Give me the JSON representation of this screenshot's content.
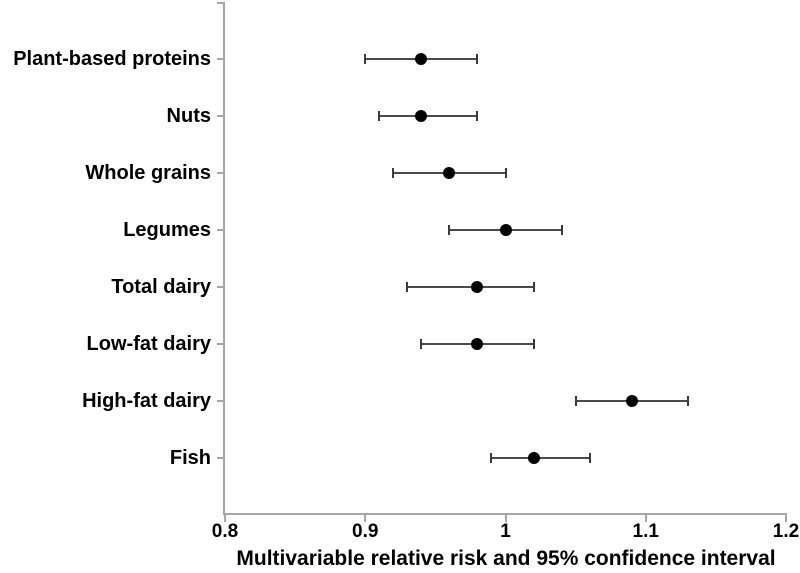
{
  "chart_data": {
    "type": "scatter",
    "subtype": "forest-plot-horizontal-error-bars",
    "title": "",
    "xlabel": "Multivariable relative risk and 95% confidence interval",
    "ylabel": "",
    "xlim": [
      0.8,
      1.2
    ],
    "xticks": [
      {
        "value": 0.8,
        "label": "0.8"
      },
      {
        "value": 0.9,
        "label": "0.9"
      },
      {
        "value": 1.0,
        "label": "1"
      },
      {
        "value": 1.1,
        "label": "1.1"
      },
      {
        "value": 1.2,
        "label": "1.2"
      }
    ],
    "grid": false,
    "legend_position": "none",
    "categories": [
      "Plant-based proteins",
      "Nuts",
      "Whole grains",
      "Legumes",
      "Total dairy",
      "Low-fat dairy",
      "High-fat dairy",
      "Fish"
    ],
    "series": [
      {
        "name": "Multivariable relative risk with 95% CI",
        "marker": "filled-circle",
        "points": [
          {
            "category": "Plant-based proteins",
            "rr": 0.94,
            "ci_low": 0.9,
            "ci_high": 0.98
          },
          {
            "category": "Nuts",
            "rr": 0.94,
            "ci_low": 0.91,
            "ci_high": 0.98
          },
          {
            "category": "Whole grains",
            "rr": 0.96,
            "ci_low": 0.92,
            "ci_high": 1.0
          },
          {
            "category": "Legumes",
            "rr": 1.0,
            "ci_low": 0.96,
            "ci_high": 1.04
          },
          {
            "category": "Total dairy",
            "rr": 0.98,
            "ci_low": 0.93,
            "ci_high": 1.02
          },
          {
            "category": "Low-fat dairy",
            "rr": 0.98,
            "ci_low": 0.94,
            "ci_high": 1.02
          },
          {
            "category": "High-fat dairy",
            "rr": 1.09,
            "ci_low": 1.05,
            "ci_high": 1.13
          },
          {
            "category": "Fish",
            "rr": 1.02,
            "ci_low": 0.99,
            "ci_high": 1.06
          }
        ]
      }
    ],
    "colors": {
      "axis": "#a6a6a6",
      "error_bar": "#4a4a4a",
      "marker": "#000000",
      "text": "#000000",
      "background": "#ffffff"
    }
  }
}
